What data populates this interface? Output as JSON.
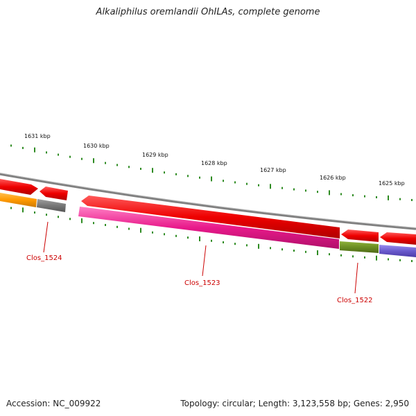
{
  "title": "Alkaliphilus oremlandii OhILAs, complete genome",
  "footer": {
    "accession": "Accession: NC_009922",
    "summary": "Topology: circular; Length: 3,123,558 bp; Genes: 2,950"
  },
  "ticks": [
    "1631 kbp",
    "1630 kbp",
    "1629 kbp",
    "1628 kbp",
    "1627 kbp",
    "1626 kbp",
    "1625 kbp"
  ],
  "genes": [
    {
      "label": "Clos_1524",
      "color": "#808080"
    },
    {
      "label": "Clos_1523",
      "color": "#e8198a"
    },
    {
      "label": "Clos_1522",
      "color": "#6b8e23"
    }
  ],
  "colors": {
    "backbone": "#808080",
    "arrow_red": "#ee0000",
    "orange": "#ff9900",
    "purple": "#6a5acd",
    "ticks": "#2e8b22",
    "label_red": "#cc0000"
  }
}
